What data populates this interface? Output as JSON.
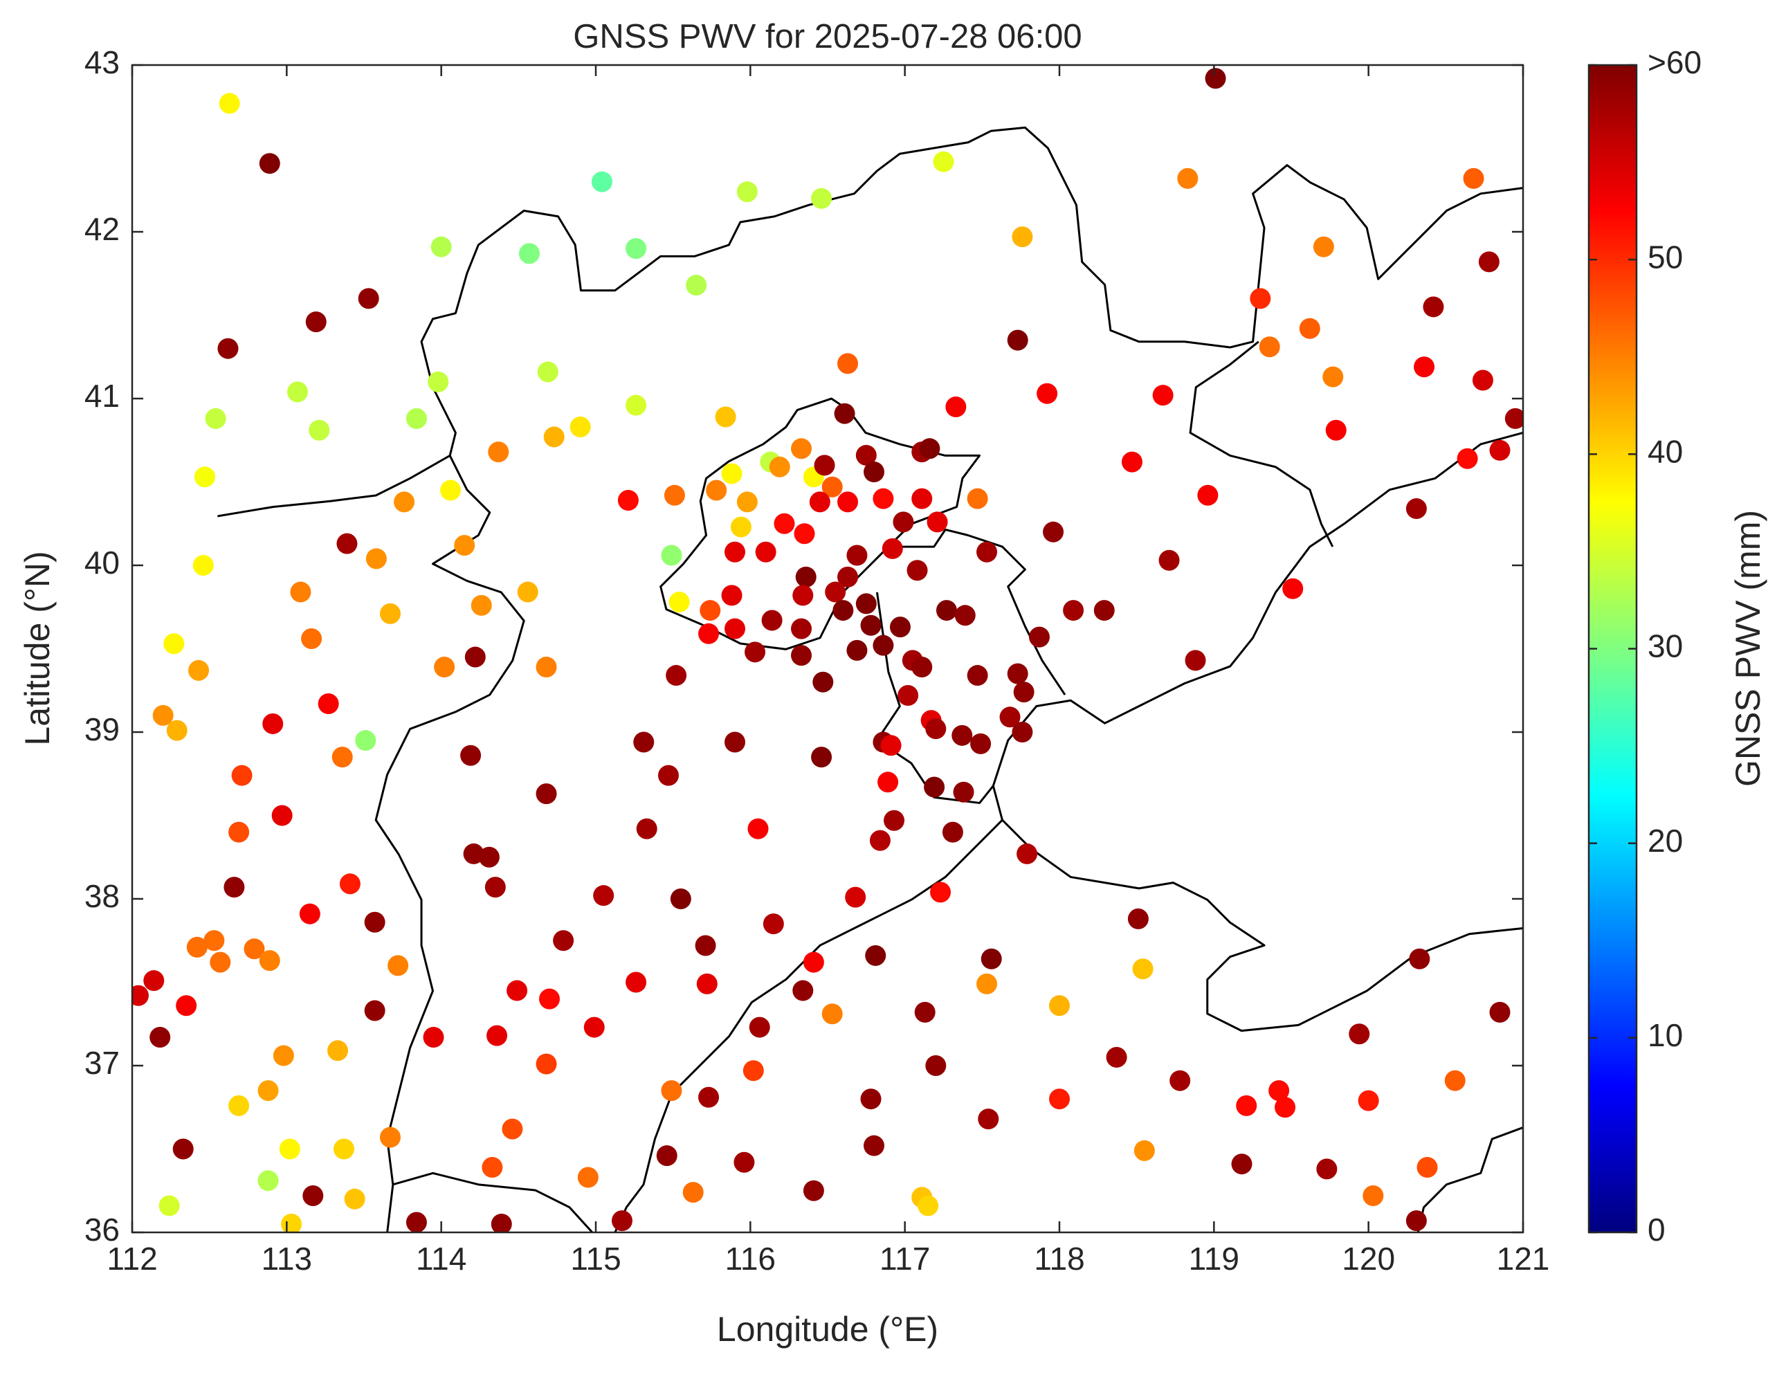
{
  "chart_data": {
    "type": "scatter",
    "title": "GNSS PWV for 2025-07-28 06:00",
    "x_label": "Longitude (°E)",
    "y_label": "Latitude (°N)",
    "xlim": [
      112,
      121
    ],
    "ylim": [
      36,
      43
    ],
    "xticks": [
      112,
      113,
      114,
      115,
      116,
      117,
      118,
      119,
      120,
      121
    ],
    "yticks": [
      36,
      37,
      38,
      39,
      40,
      41,
      42,
      43
    ],
    "colormap": "jet",
    "colorbar": {
      "label": "GNSS PWV (mm)",
      "lim": [
        0,
        60
      ],
      "ticks": [
        0,
        10,
        20,
        30,
        40,
        50,
        {
          "value": 60,
          "label": ">60"
        }
      ]
    },
    "x": [
      112.63,
      112.89,
      119.01,
      115.04,
      115.98,
      116.46,
      117.25,
      118.83,
      120.68,
      114.0,
      114.57,
      115.26,
      115.65,
      117.76,
      119.71,
      120.78,
      113.53,
      113.19,
      112.62,
      119.3,
      120.42,
      119.62,
      119.36,
      117.73,
      116.63,
      120.36,
      120.74,
      119.77,
      114.69,
      113.98,
      113.07,
      112.54,
      113.21,
      113.84,
      115.26,
      114.9,
      114.73,
      115.84,
      117.33,
      117.92,
      118.67,
      116.61,
      119.79,
      120.95,
      112.47,
      114.37,
      114.06,
      116.33,
      116.75,
      115.88,
      116.13,
      116.41,
      116.19,
      116.48,
      116.8,
      117.11,
      117.16,
      116.53,
      115.78,
      115.98,
      115.94,
      115.51,
      115.21,
      116.45,
      116.63,
      116.86,
      116.99,
      117.11,
      117.21,
      117.47,
      116.22,
      116.35,
      115.9,
      116.1,
      116.69,
      116.92,
      117.53,
      117.96,
      118.96,
      118.47,
      120.64,
      120.85,
      120.31,
      113.39,
      113.76,
      113.58,
      114.15,
      112.46,
      115.49,
      115.54,
      116.36,
      116.63,
      116.34,
      116.55,
      116.6,
      116.75,
      117.08,
      118.71,
      119.51,
      118.09,
      118.29,
      113.09,
      114.56,
      114.26,
      113.67,
      112.27,
      113.16,
      115.88,
      115.74,
      115.73,
      115.9,
      116.14,
      116.33,
      116.78,
      116.97,
      117.27,
      117.39,
      117.87,
      116.03,
      116.33,
      116.69,
      116.86,
      117.05,
      117.11,
      112.43,
      114.02,
      114.68,
      114.22,
      115.52,
      116.47,
      117.47,
      118.88,
      117.73,
      117.77,
      117.02,
      113.27,
      112.2,
      112.29,
      112.91,
      117.68,
      117.76,
      117.17,
      117.2,
      117.37,
      117.49,
      113.51,
      113.36,
      114.19,
      115.31,
      115.9,
      116.46,
      116.86,
      116.91,
      112.71,
      115.47,
      116.89,
      117.19,
      117.38,
      114.68,
      112.97,
      112.69,
      115.33,
      116.05,
      116.93,
      117.31,
      116.84,
      114.21,
      114.31,
      117.79,
      112.66,
      113.41,
      114.35,
      115.05,
      115.55,
      116.68,
      117.23,
      113.15,
      113.57,
      118.51,
      116.15,
      112.42,
      112.53,
      112.57,
      112.79,
      112.89,
      114.79,
      115.71,
      116.81,
      117.56,
      116.41,
      113.72,
      118.54,
      120.33,
      112.14,
      112.04,
      115.26,
      115.72,
      114.49,
      116.34,
      117.53,
      112.35,
      114.7,
      113.57,
      116.53,
      117.13,
      118.0,
      120.85,
      112.18,
      113.95,
      114.36,
      114.99,
      116.06,
      119.94,
      112.98,
      113.33,
      114.68,
      116.02,
      117.2,
      118.37,
      118.78,
      120.56,
      112.88,
      112.69,
      115.49,
      115.73,
      116.78,
      118.0,
      119.21,
      119.42,
      119.46,
      120.0,
      117.54,
      113.67,
      114.46,
      112.33,
      113.02,
      113.37,
      115.46,
      116.8,
      118.55,
      114.33,
      114.95,
      115.96,
      119.18,
      119.73,
      120.38,
      112.88,
      113.17,
      112.24,
      113.44,
      115.63,
      116.41,
      117.11,
      117.15,
      120.03,
      113.03,
      113.84,
      114.39,
      115.17,
      120.31
    ],
    "values": [
      42.77,
      42.41,
      42.92,
      42.3,
      42.24,
      42.2,
      42.42,
      42.32,
      42.32,
      41.91,
      41.87,
      41.9,
      41.68,
      41.97,
      41.91,
      41.82,
      41.6,
      41.46,
      41.3,
      41.6,
      41.55,
      41.42,
      41.31,
      41.35,
      41.21,
      41.19,
      41.11,
      41.13,
      41.16,
      41.1,
      41.04,
      40.88,
      40.81,
      40.88,
      40.96,
      40.83,
      40.77,
      40.89,
      40.95,
      41.03,
      41.02,
      40.91,
      40.81,
      40.88,
      40.53,
      40.68,
      40.45,
      40.7,
      40.66,
      40.55,
      40.62,
      40.53,
      40.59,
      40.6,
      40.56,
      40.68,
      40.7,
      40.47,
      40.45,
      40.38,
      40.23,
      40.42,
      40.39,
      40.38,
      40.38,
      40.4,
      40.26,
      40.4,
      40.26,
      40.4,
      40.25,
      40.19,
      40.08,
      40.08,
      40.06,
      40.1,
      40.08,
      40.2,
      40.42,
      40.62,
      40.64,
      40.69,
      40.34,
      40.13,
      40.38,
      40.04,
      40.12,
      40.0,
      40.06,
      39.78,
      39.93,
      39.93,
      39.82,
      39.84,
      39.73,
      39.77,
      39.97,
      40.03,
      39.86,
      39.73,
      39.73,
      39.84,
      39.84,
      39.76,
      39.71,
      39.53,
      39.56,
      39.82,
      39.73,
      39.59,
      39.62,
      39.67,
      39.62,
      39.64,
      39.63,
      39.73,
      39.7,
      39.57,
      39.48,
      39.46,
      39.49,
      39.52,
      39.43,
      39.39,
      39.37,
      39.39,
      39.39,
      39.45,
      39.34,
      39.3,
      39.34,
      39.43,
      39.35,
      39.24,
      39.22,
      39.17,
      39.1,
      39.01,
      39.05,
      39.09,
      39.0,
      39.07,
      39.02,
      38.98,
      38.93,
      38.95,
      38.85,
      38.86,
      38.94,
      38.94,
      38.85,
      38.94,
      38.92,
      38.74,
      38.74,
      38.7,
      38.67,
      38.64,
      38.63,
      38.5,
      38.4,
      38.42,
      38.42,
      38.47,
      38.4,
      38.35,
      38.27,
      38.25,
      38.27,
      38.07,
      38.09,
      38.07,
      38.02,
      38.0,
      38.01,
      38.04,
      37.91,
      37.86,
      37.88,
      37.85,
      37.71,
      37.75,
      37.62,
      37.7,
      37.63,
      37.75,
      37.72,
      37.66,
      37.64,
      37.62,
      37.6,
      37.58,
      37.64,
      37.51,
      37.42,
      37.5,
      37.49,
      37.45,
      37.45,
      37.49,
      37.36,
      37.4,
      37.33,
      37.31,
      37.32,
      37.36,
      37.32,
      37.17,
      37.17,
      37.18,
      37.23,
      37.23,
      37.19,
      37.06,
      37.09,
      37.01,
      36.97,
      37.0,
      37.05,
      36.91,
      36.91,
      36.85,
      36.76,
      36.85,
      36.81,
      36.8,
      36.8,
      36.76,
      36.85,
      36.75,
      36.79,
      36.68,
      36.57,
      36.62,
      36.5,
      36.5,
      36.5,
      36.46,
      36.52,
      36.49,
      36.39,
      36.33,
      36.42,
      36.41,
      36.38,
      36.39,
      36.31,
      36.22,
      36.16,
      36.2,
      36.24,
      36.25,
      36.21,
      36.16,
      36.22,
      36.05,
      36.06,
      36.05,
      36.07,
      36.07
    ],
    "pwv": [
      38,
      60,
      62,
      28,
      34,
      34,
      36,
      45,
      47,
      33,
      30,
      30,
      33,
      42,
      45,
      58,
      59,
      59,
      59,
      50,
      58,
      47,
      46,
      60,
      47,
      53,
      55,
      45,
      34,
      34,
      34,
      34,
      34,
      33,
      35,
      39,
      42,
      41,
      53,
      53,
      53,
      60,
      53,
      58,
      37,
      45,
      38,
      45,
      58,
      38,
      34,
      38,
      44,
      58,
      60,
      58,
      60,
      47,
      45,
      43,
      40,
      46,
      52,
      54,
      53,
      52,
      58,
      54,
      54,
      46,
      52,
      52,
      54,
      54,
      58,
      55,
      58,
      59,
      53,
      53,
      52,
      55,
      58,
      58,
      44,
      44,
      44,
      38,
      31,
      38,
      60,
      58,
      56,
      57,
      60,
      60,
      58,
      58,
      53,
      58,
      59,
      45,
      42,
      44,
      42,
      38,
      46,
      54,
      48,
      53,
      54,
      58,
      58,
      60,
      60,
      60,
      59,
      59,
      58,
      59,
      60,
      60,
      58,
      59,
      43,
      45,
      45,
      59,
      58,
      60,
      59,
      58,
      59,
      59,
      57,
      53,
      44,
      42,
      54,
      58,
      59,
      54,
      58,
      59,
      59,
      31,
      46,
      59,
      59,
      59,
      60,
      59,
      54,
      49,
      58,
      53,
      60,
      59,
      59,
      54,
      48,
      58,
      53,
      58,
      59,
      57,
      59,
      59,
      57,
      59,
      51,
      58,
      57,
      60,
      55,
      52,
      53,
      59,
      59,
      57,
      46,
      46,
      46,
      46,
      45,
      58,
      59,
      60,
      60,
      53,
      45,
      41,
      59,
      55,
      55,
      54,
      54,
      54,
      59,
      44,
      53,
      52,
      59,
      45,
      59,
      42,
      59,
      59,
      54,
      54,
      54,
      58,
      58,
      44,
      42,
      49,
      49,
      59,
      58,
      58,
      47,
      43,
      40,
      46,
      58,
      59,
      51,
      52,
      52,
      52,
      51,
      58,
      45,
      48,
      59,
      38,
      40,
      59,
      59,
      44,
      48,
      46,
      58,
      59,
      58,
      48,
      33,
      59,
      35,
      41,
      46,
      59,
      41,
      40,
      46,
      40,
      59,
      59,
      58,
      59
    ]
  }
}
